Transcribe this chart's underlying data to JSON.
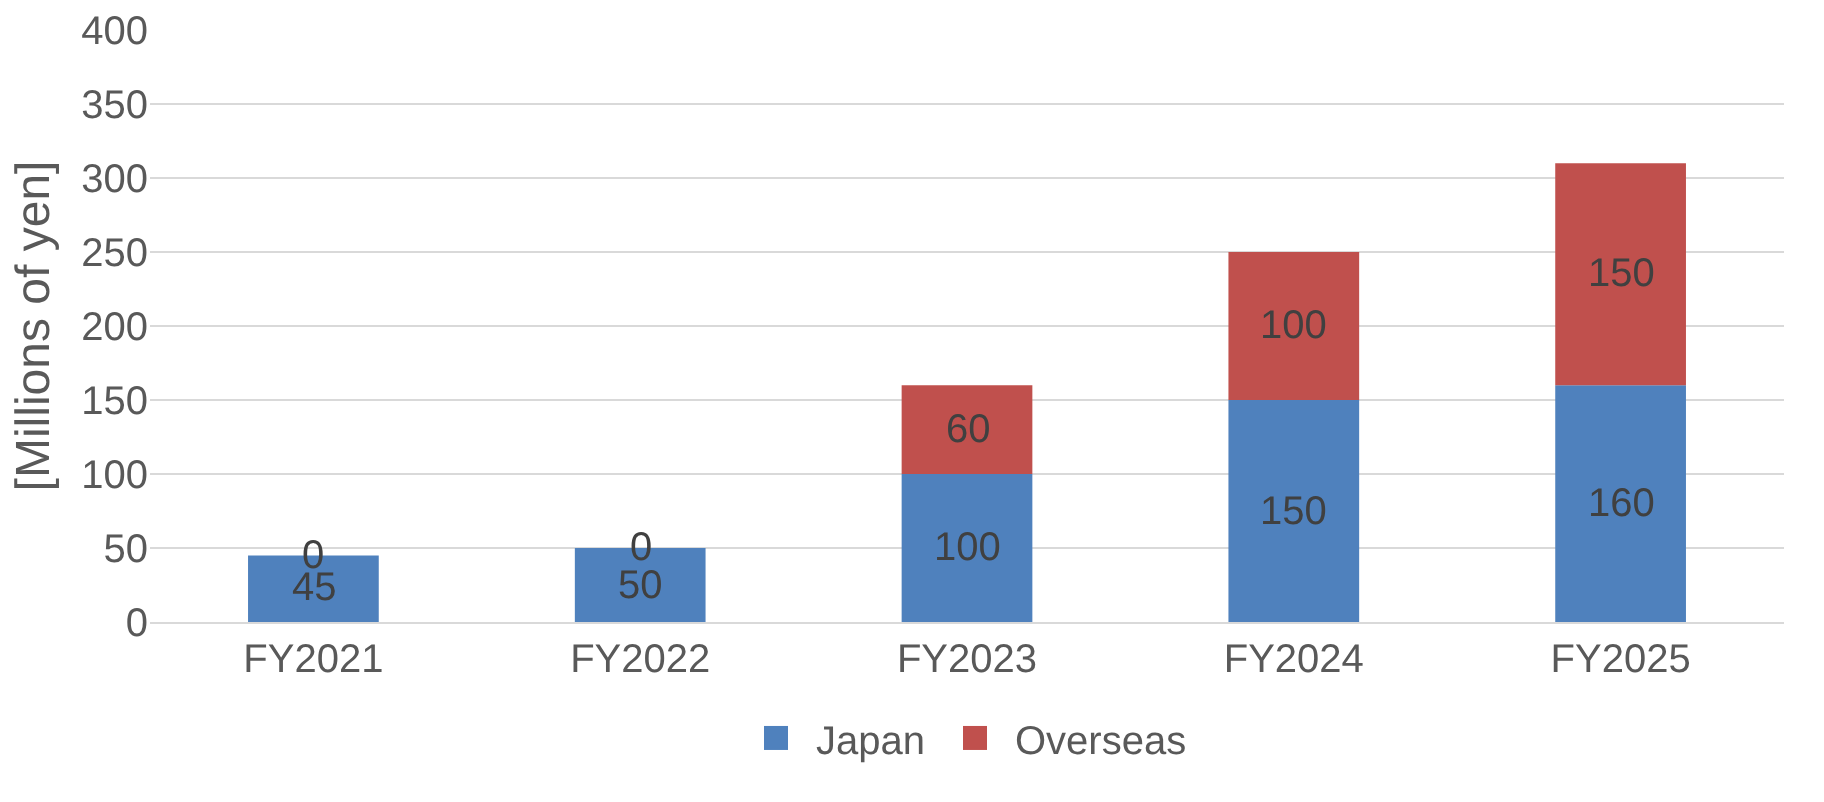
{
  "chart_data": {
    "type": "bar",
    "stacked": true,
    "ylabel": "[Millions of yen]",
    "categories": [
      "FY2021",
      "FY2022",
      "FY2023",
      "FY2024",
      "FY2025"
    ],
    "series": [
      {
        "name": "Japan",
        "color": "#4f81bd",
        "values": [
          45,
          50,
          100,
          150,
          160
        ]
      },
      {
        "name": "Overseas",
        "color": "#c0504d",
        "values": [
          0,
          0,
          60,
          100,
          150
        ]
      }
    ],
    "ylim": [
      0,
      400
    ],
    "yticks": [
      0,
      50,
      100,
      150,
      200,
      250,
      300,
      350,
      400
    ],
    "grid": "y",
    "legend": "bottom",
    "data_labels": true
  }
}
